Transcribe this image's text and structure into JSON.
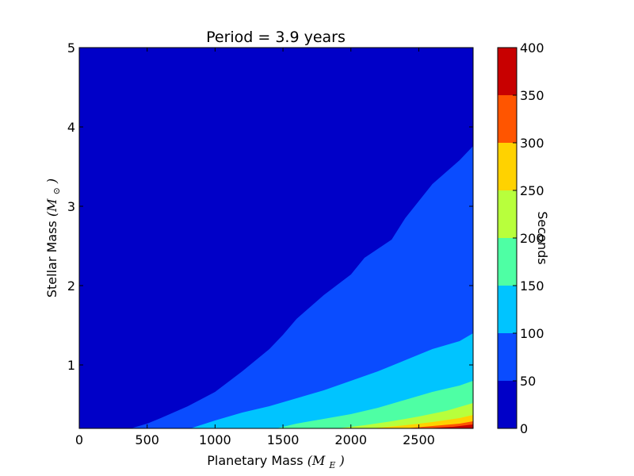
{
  "chart_data": {
    "type": "contourf",
    "title": "Period = 3.9 years",
    "xlabel": "Planetary Mass",
    "xlabel_math": "(M",
    "xlabel_sub": "E",
    "xlabel_close": ")",
    "ylabel": "Stellar Mass",
    "ylabel_math": "(M",
    "ylabel_sub": "⊙",
    "ylabel_close": ")",
    "xlim": [
      0,
      2900
    ],
    "ylim": [
      0.2,
      5
    ],
    "x_ticks": [
      "0",
      "500",
      "1000",
      "1500",
      "2000",
      "2500"
    ],
    "x_tick_values": [
      0,
      500,
      1000,
      1500,
      2000,
      2500
    ],
    "y_ticks": [
      "1",
      "2",
      "3",
      "4",
      "5"
    ],
    "y_tick_values": [
      1,
      2,
      3,
      4,
      5
    ],
    "colorbar": {
      "label": "Seconds",
      "levels": [
        0,
        50,
        100,
        150,
        200,
        250,
        300,
        350,
        400
      ],
      "tick_labels": [
        "0",
        "50",
        "100",
        "150",
        "200",
        "250",
        "300",
        "350",
        "400"
      ],
      "colors": [
        "#0000c8",
        "#0a4cff",
        "#00c4ff",
        "#4effa4",
        "#b8ff3c",
        "#ffd200",
        "#ff5500",
        "#c80000"
      ]
    },
    "contour_boundaries": [
      {
        "level": 50,
        "points": [
          [
            380,
            0.2
          ],
          [
            500,
            0.26
          ],
          [
            600,
            0.33
          ],
          [
            800,
            0.48
          ],
          [
            1000,
            0.66
          ],
          [
            1200,
            0.92
          ],
          [
            1400,
            1.2
          ],
          [
            1500,
            1.38
          ],
          [
            1600,
            1.58
          ],
          [
            1800,
            1.88
          ],
          [
            2000,
            2.14
          ],
          [
            2100,
            2.35
          ],
          [
            2300,
            2.58
          ],
          [
            2400,
            2.85
          ],
          [
            2600,
            3.28
          ],
          [
            2800,
            3.58
          ],
          [
            2900,
            3.76
          ]
        ]
      },
      {
        "level": 100,
        "points": [
          [
            820,
            0.2
          ],
          [
            1000,
            0.3
          ],
          [
            1200,
            0.4
          ],
          [
            1400,
            0.48
          ],
          [
            1600,
            0.58
          ],
          [
            1800,
            0.68
          ],
          [
            2000,
            0.8
          ],
          [
            2200,
            0.92
          ],
          [
            2400,
            1.06
          ],
          [
            2600,
            1.2
          ],
          [
            2800,
            1.3
          ],
          [
            2900,
            1.4
          ]
        ]
      },
      {
        "level": 150,
        "points": [
          [
            1450,
            0.2
          ],
          [
            1600,
            0.26
          ],
          [
            1800,
            0.32
          ],
          [
            2000,
            0.38
          ],
          [
            2200,
            0.46
          ],
          [
            2400,
            0.56
          ],
          [
            2600,
            0.66
          ],
          [
            2800,
            0.74
          ],
          [
            2900,
            0.8
          ]
        ]
      },
      {
        "level": 200,
        "points": [
          [
            1900,
            0.2
          ],
          [
            2100,
            0.24
          ],
          [
            2300,
            0.29
          ],
          [
            2500,
            0.35
          ],
          [
            2700,
            0.42
          ],
          [
            2900,
            0.52
          ]
        ]
      },
      {
        "level": 250,
        "points": [
          [
            2150,
            0.2
          ],
          [
            2400,
            0.24
          ],
          [
            2600,
            0.28
          ],
          [
            2800,
            0.33
          ],
          [
            2900,
            0.37
          ]
        ]
      },
      {
        "level": 300,
        "points": [
          [
            2400,
            0.2
          ],
          [
            2600,
            0.23
          ],
          [
            2800,
            0.26
          ],
          [
            2900,
            0.29
          ]
        ]
      },
      {
        "level": 350,
        "points": [
          [
            2550,
            0.2
          ],
          [
            2750,
            0.22
          ],
          [
            2900,
            0.25
          ]
        ]
      }
    ]
  }
}
